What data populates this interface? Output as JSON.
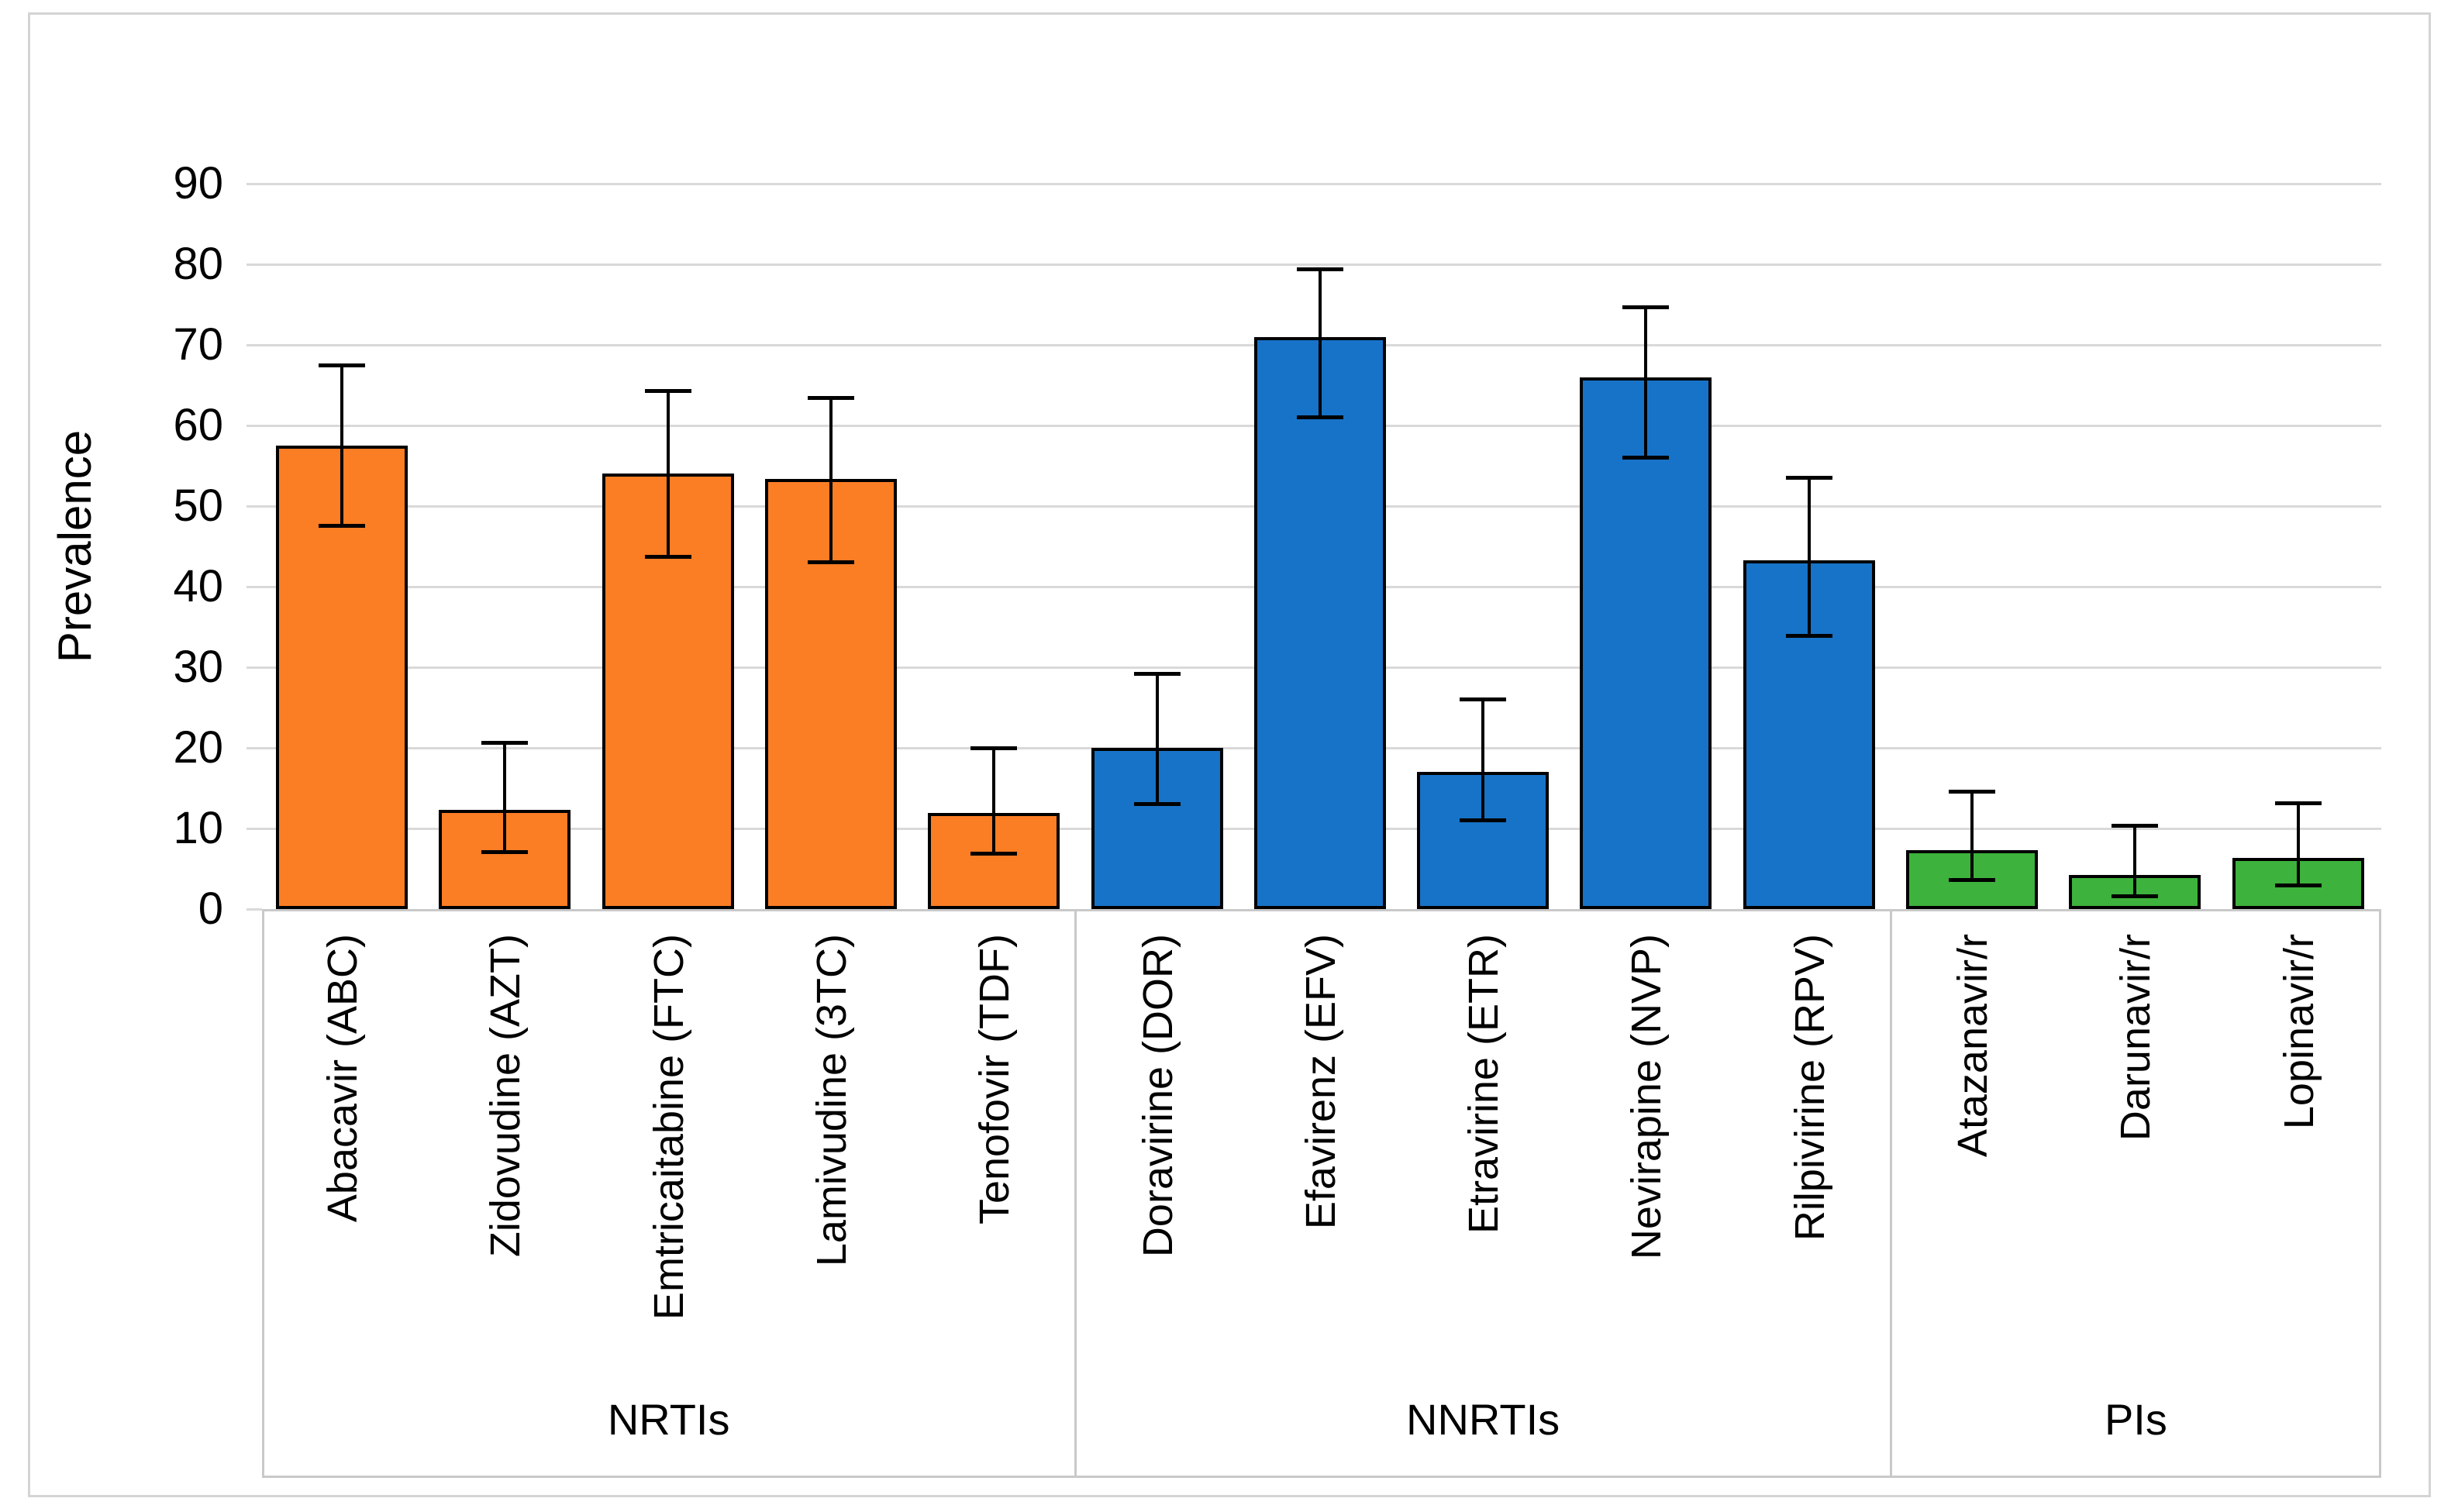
{
  "chart_data": {
    "type": "bar",
    "title": "",
    "ylabel": "Prevalence",
    "xlabel": "",
    "ylim": [
      0,
      90
    ],
    "yticks": [
      0,
      10,
      20,
      30,
      40,
      50,
      60,
      70,
      80,
      90
    ],
    "grid": true,
    "legend_position": "none",
    "categories": [
      "Abacavir (ABC)",
      "Zidovudine (AZT)",
      "Emtricaitabine (FTC)",
      "Lamivudine (3TC)",
      "Tenofovir (TDF)",
      "Doravirine (DOR)",
      "Efavirenz (EFV)",
      "Etravirine (ETR)",
      "Nevirapine (NVP)",
      "Rilpivirine (RPV)",
      "Atazanavir/r",
      "Darunavir/r",
      "Lopinavir/r"
    ],
    "values": [
      57.5,
      12.3,
      54.0,
      53.4,
      11.9,
      20.0,
      71.0,
      17.0,
      66.0,
      43.3,
      7.3,
      4.2,
      6.3
    ],
    "error_low": [
      47.5,
      7.0,
      43.7,
      43.0,
      6.8,
      13.0,
      61.0,
      11.0,
      56.0,
      33.8,
      3.6,
      1.5,
      2.9
    ],
    "error_high": [
      67.5,
      20.7,
      64.3,
      63.5,
      20.0,
      29.2,
      79.4,
      26.1,
      74.7,
      53.6,
      14.6,
      10.4,
      13.2
    ],
    "groups": [
      {
        "label": "NRTIs",
        "count": 5,
        "color": "#fb7d24"
      },
      {
        "label": "NNRTIs",
        "count": 5,
        "color": "#1773c8"
      },
      {
        "label": "PIs",
        "count": 3,
        "color": "#3db23c"
      }
    ]
  },
  "colors": {
    "bar_outline": "#000000",
    "error_bar": "#000000",
    "gridline": "#d9d9d9",
    "label_box_border": "#c9c9c9",
    "figure_border": "#d4d4d4",
    "background": "#ffffff"
  }
}
